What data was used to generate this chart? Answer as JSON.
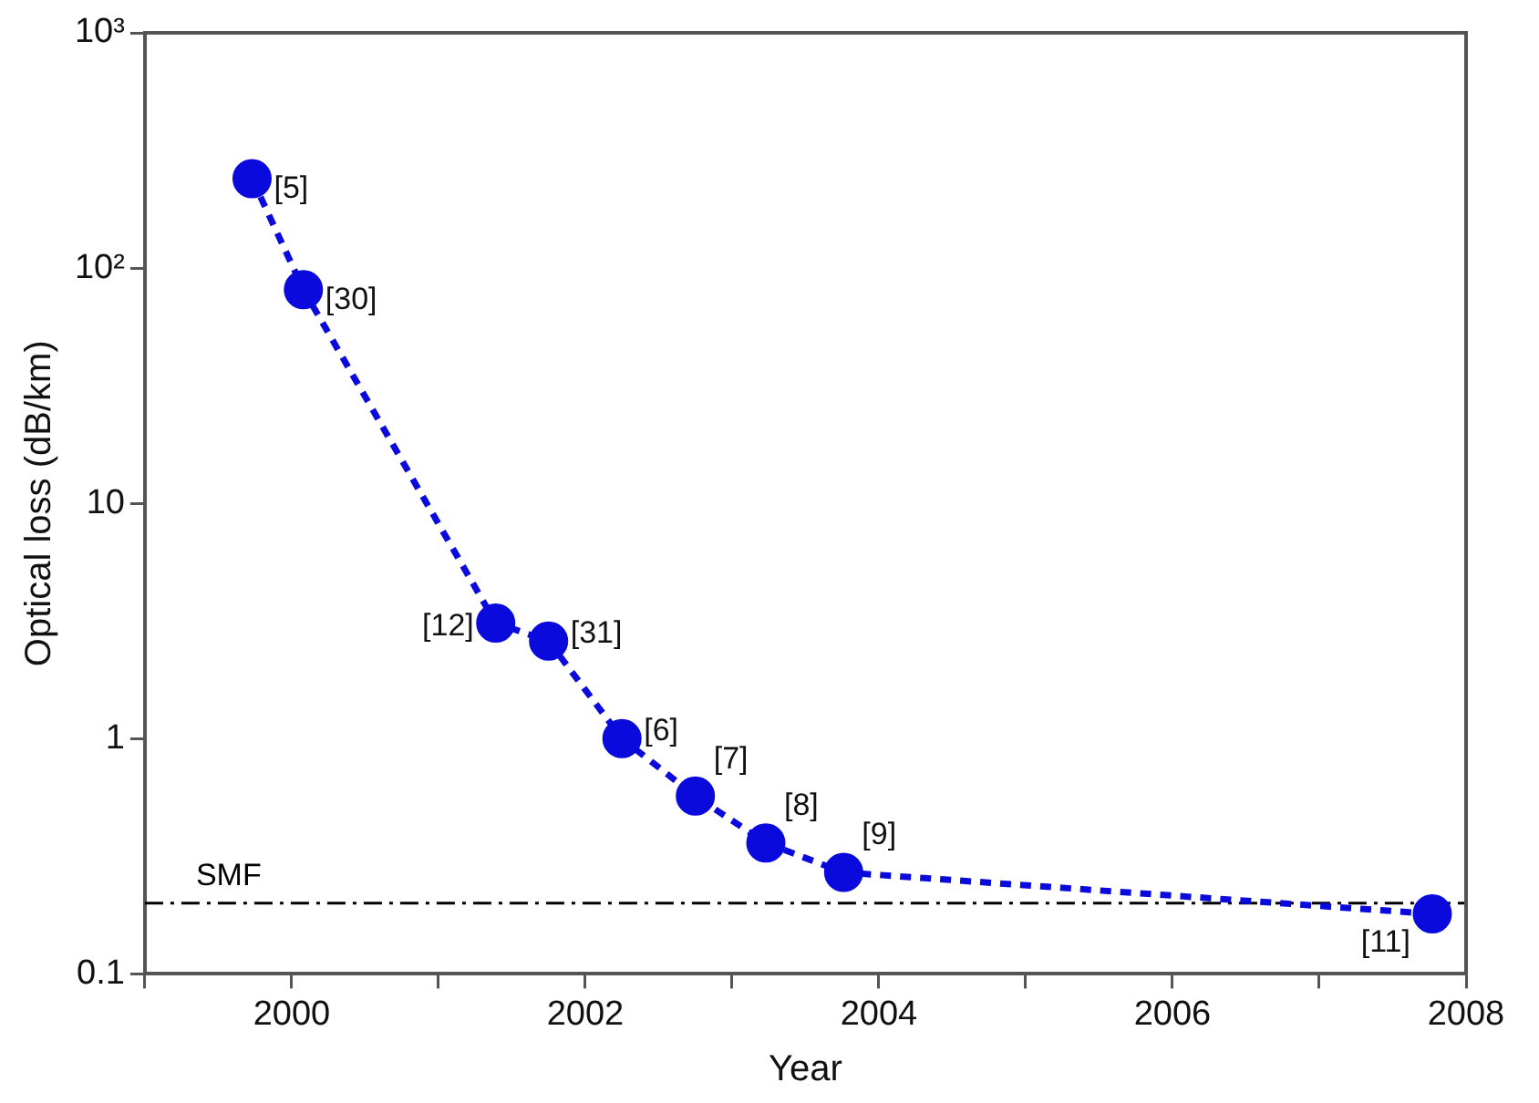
{
  "chart_data": {
    "type": "line",
    "xlabel": "Year",
    "ylabel": "Optical loss (dB/km)",
    "log": "y",
    "grid": false,
    "legend": false,
    "marker": "circle",
    "line_style": "dashed",
    "xlim": [
      1999,
      2008
    ],
    "xticks": [
      {
        "value": 1999,
        "label": null
      },
      2000,
      {
        "value": 2001,
        "label": null
      },
      2002,
      {
        "value": 2003,
        "label": null
      },
      2004,
      {
        "value": 2005,
        "label": null
      },
      2006,
      {
        "value": 2007,
        "label": null
      },
      2008
    ],
    "ylim": [
      0.1,
      1000
    ],
    "yticks": [
      0.1,
      1,
      10,
      {
        "value": 100,
        "label": "10²"
      },
      {
        "value": 1000,
        "label": "10³"
      }
    ],
    "x": [
      1999.73,
      2000.08,
      2001.39,
      2001.75,
      2002.25,
      2002.75,
      2003.23,
      2003.76,
      2007.77
    ],
    "series": [
      {
        "color": "#0a0adc",
        "values": [
          240,
          81,
          3.1,
          2.6,
          1.0,
          0.57,
          0.36,
          0.27,
          0.18
        ]
      }
    ],
    "ref_lines": [
      {
        "axis": "y",
        "value": 0.2,
        "label": "SMF",
        "color": "#000000",
        "line_style": "dashdot"
      }
    ],
    "annotations": [
      {
        "text": "[5]",
        "x": 1999.73,
        "y": 240
      },
      {
        "text": "[30]",
        "x": 2000.08,
        "y": 81
      },
      {
        "text": "[12]",
        "x": 2001.39,
        "y": 3.1
      },
      {
        "text": "[31]",
        "x": 2001.75,
        "y": 2.6
      },
      {
        "text": "[6]",
        "x": 2002.25,
        "y": 1.0
      },
      {
        "text": "[7]",
        "x": 2002.75,
        "y": 0.57
      },
      {
        "text": "[8]",
        "x": 2003.23,
        "y": 0.36
      },
      {
        "text": "[9]",
        "x": 2003.76,
        "y": 0.27
      },
      {
        "text": "[11]",
        "x": 2007.77,
        "y": 0.18
      }
    ]
  }
}
